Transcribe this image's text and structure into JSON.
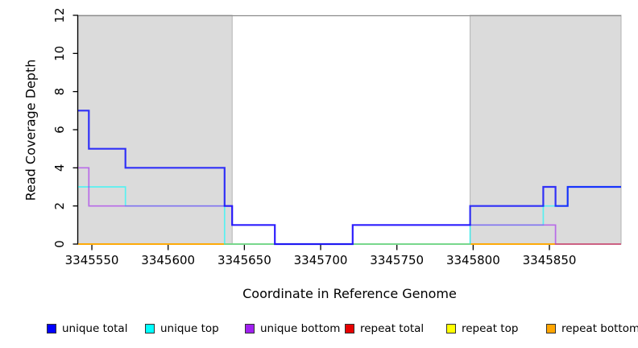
{
  "chart_data": {
    "type": "line",
    "subtype": "step-coverage",
    "title": "",
    "xlabel": "Coordinate in Reference Genome",
    "ylabel": "Read Coverage Depth",
    "xlim": [
      3345541,
      3345897
    ],
    "ylim": [
      0,
      12
    ],
    "x_ticks": [
      3345550,
      3345600,
      3345650,
      3345700,
      3345750,
      3345800,
      3345850
    ],
    "y_ticks": [
      0,
      2,
      4,
      6,
      8,
      10,
      12
    ],
    "grid": "off",
    "shaded_regions": [
      {
        "from": 3345541,
        "to": 3345642,
        "color": "#DBDBDB",
        "border": "#B3B3B3"
      },
      {
        "from": 3345798,
        "to": 3345897,
        "color": "#DBDBDB",
        "border": "#B3B3B3"
      }
    ],
    "series": [
      {
        "name": "repeat total",
        "color": "#E60000",
        "opacity": 0.95,
        "width": 1.5,
        "steps": [
          [
            3345541,
            0
          ]
        ]
      },
      {
        "name": "repeat top",
        "color": "#FFFF00",
        "opacity": 0.95,
        "width": 1.5,
        "steps": [
          [
            3345541,
            0
          ]
        ]
      },
      {
        "name": "repeat bottom",
        "color": "#FFA500",
        "opacity": 0.95,
        "width": 1.7,
        "steps": [
          [
            3345541,
            0
          ]
        ]
      },
      {
        "name": "unique top",
        "color": "#00FFFF",
        "opacity": 0.6,
        "width": 1.7,
        "steps": [
          [
            3345541,
            3
          ],
          [
            3345572,
            2
          ],
          [
            3345637,
            0
          ],
          [
            3345798,
            1
          ],
          [
            3345846,
            2
          ],
          [
            3345862,
            3
          ]
        ]
      },
      {
        "name": "unique bottom",
        "color": "#A020F0",
        "opacity": 0.6,
        "width": 1.7,
        "steps": [
          [
            3345541,
            4
          ],
          [
            3345548,
            2
          ],
          [
            3345642,
            1
          ],
          [
            3345670,
            0
          ],
          [
            3345721,
            1
          ],
          [
            3345854,
            0
          ]
        ]
      },
      {
        "name": "unique total",
        "color": "#0000FF",
        "opacity": 0.78,
        "width": 2.2,
        "steps": [
          [
            3345541,
            7
          ],
          [
            3345548,
            5
          ],
          [
            3345572,
            4
          ],
          [
            3345637,
            2
          ],
          [
            3345642,
            1
          ],
          [
            3345670,
            0
          ],
          [
            3345721,
            1
          ],
          [
            3345798,
            2
          ],
          [
            3345846,
            3
          ],
          [
            3345854,
            2
          ],
          [
            3345862,
            3
          ]
        ]
      }
    ],
    "legend_position": "bottom",
    "legend": [
      {
        "label": "unique total",
        "color": "#0000FF"
      },
      {
        "label": "unique top",
        "color": "#00FFFF"
      },
      {
        "label": "unique bottom",
        "color": "#A020F0"
      },
      {
        "label": "repeat total",
        "color": "#E60000"
      },
      {
        "label": "repeat top",
        "color": "#FFFF00"
      },
      {
        "label": "repeat bottom",
        "color": "#FFA500"
      }
    ],
    "colors": {
      "axis": "#000000",
      "plot_top_border": "#8C8C8C",
      "background": "#FFFFFF"
    }
  }
}
